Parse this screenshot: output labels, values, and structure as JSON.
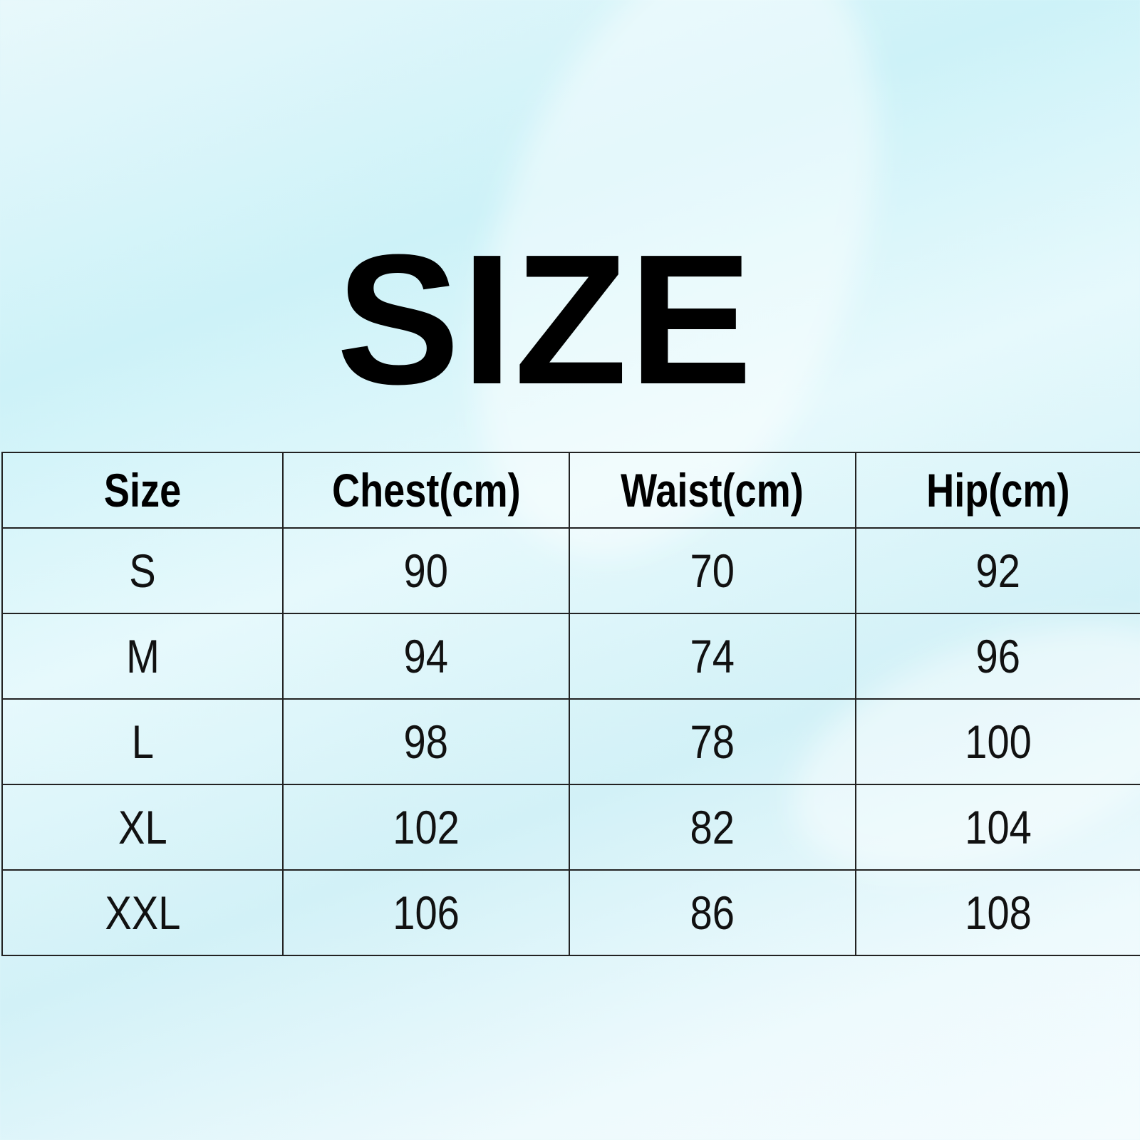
{
  "title": "SIZE",
  "table": {
    "headers": [
      "Size",
      "Chest(cm)",
      "Waist(cm)",
      "Hip(cm)"
    ],
    "rows": [
      [
        "S",
        "90",
        "70",
        "92"
      ],
      [
        "M",
        "94",
        "74",
        "96"
      ],
      [
        "L",
        "98",
        "78",
        "100"
      ],
      [
        "XL",
        "102",
        "82",
        "104"
      ],
      [
        "XXL",
        "106",
        "86",
        "108"
      ]
    ]
  }
}
